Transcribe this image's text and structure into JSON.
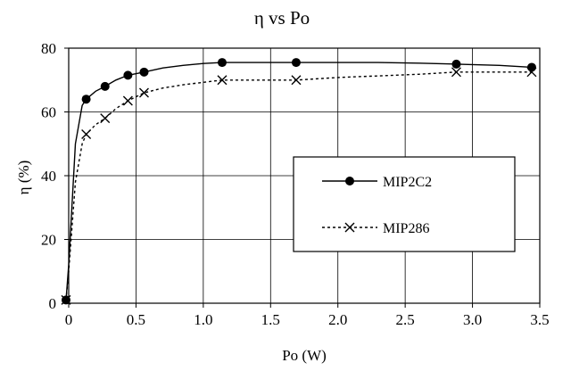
{
  "chart_data": {
    "type": "line",
    "title": "η vs Po",
    "xlabel": "Po (W)",
    "ylabel": "η (%)",
    "xlim": [
      0,
      3.5
    ],
    "ylim": [
      0,
      80
    ],
    "xticks": [
      "0",
      "0.5",
      "1.0",
      "1.5",
      "2.0",
      "2.5",
      "3.0",
      "3.5"
    ],
    "yticks": [
      "0",
      "20",
      "40",
      "60",
      "80"
    ],
    "xtick_values": [
      0,
      0.5,
      1.0,
      1.5,
      2.0,
      2.5,
      3.0,
      3.5
    ],
    "ytick_values": [
      0,
      20,
      40,
      60,
      80
    ],
    "grid": true,
    "legend_position": "center-right",
    "series": [
      {
        "name": "MIP2C2",
        "line_style": "solid",
        "marker": "circle",
        "color": "#000000",
        "x": [
          -0.02,
          0.13,
          0.27,
          0.44,
          0.56,
          1.14,
          1.69,
          2.88,
          3.44
        ],
        "y": [
          1,
          64,
          68,
          71.5,
          72.5,
          75.5,
          75.5,
          75,
          74
        ],
        "curve_x": [
          -0.02,
          0.0,
          0.05,
          0.1,
          0.13,
          0.2,
          0.27,
          0.35,
          0.44,
          0.56,
          0.7,
          0.85,
          1.0,
          1.14,
          1.4,
          1.69,
          2.0,
          2.3,
          2.6,
          2.88,
          3.2,
          3.44
        ],
        "curve_y": [
          1,
          12,
          50,
          62,
          64,
          66.5,
          68,
          70,
          71.5,
          72.5,
          73.8,
          74.6,
          75.2,
          75.5,
          75.5,
          75.5,
          75.5,
          75.5,
          75.3,
          75,
          74.6,
          74
        ]
      },
      {
        "name": "MIP286",
        "line_style": "dotted",
        "marker": "x",
        "color": "#000000",
        "x": [
          -0.02,
          0.13,
          0.27,
          0.44,
          0.56,
          1.14,
          1.69,
          2.88,
          3.44
        ],
        "y": [
          1,
          53,
          58,
          63.5,
          66,
          70,
          70,
          72.5,
          72.5
        ],
        "curve_x": [
          -0.02,
          0.0,
          0.05,
          0.1,
          0.13,
          0.2,
          0.27,
          0.35,
          0.44,
          0.56,
          0.7,
          0.85,
          1.0,
          1.14,
          1.4,
          1.69,
          2.0,
          2.3,
          2.6,
          2.88,
          3.2,
          3.44
        ],
        "curve_y": [
          1,
          10,
          38,
          50,
          53,
          56,
          58,
          61,
          63.5,
          66,
          67.5,
          68.5,
          69.3,
          70,
          70,
          70,
          70.8,
          71.3,
          71.8,
          72.5,
          72.5,
          72.5
        ]
      }
    ]
  }
}
